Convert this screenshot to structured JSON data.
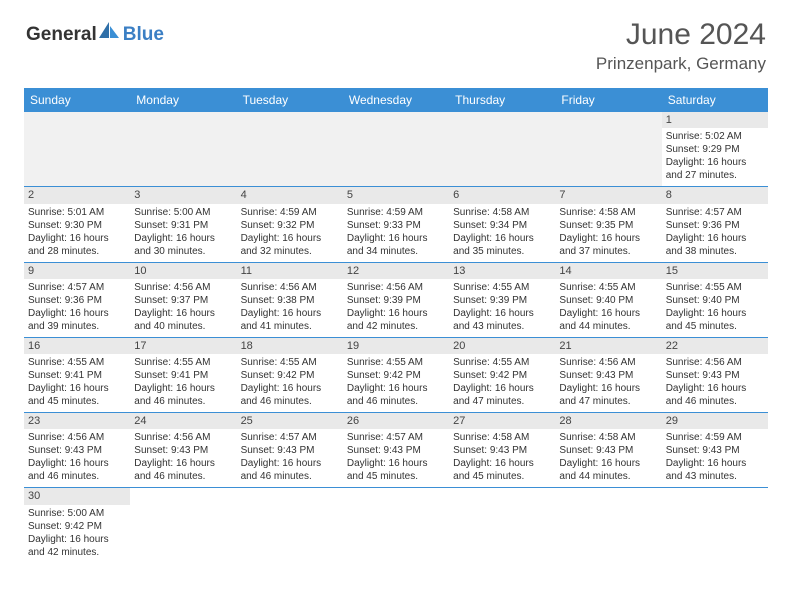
{
  "logo": {
    "text1": "General",
    "text2": "Blue"
  },
  "title": {
    "month_year": "June 2024",
    "location": "Prinzenpark, Germany"
  },
  "colors": {
    "header_bg": "#3b8fd5",
    "header_text": "#ffffff",
    "day_num_bg": "#e9e9e9",
    "row_border": "#3b8fd5",
    "text": "#333333",
    "blank_bg": "#f1f1f1",
    "logo_blue": "#3b7fc4"
  },
  "daynames": [
    "Sunday",
    "Monday",
    "Tuesday",
    "Wednesday",
    "Thursday",
    "Friday",
    "Saturday"
  ],
  "weeks": [
    [
      null,
      null,
      null,
      null,
      null,
      null,
      {
        "n": "1",
        "sr": "5:02 AM",
        "ss": "9:29 PM",
        "dl": "16 hours and 27 minutes."
      }
    ],
    [
      {
        "n": "2",
        "sr": "5:01 AM",
        "ss": "9:30 PM",
        "dl": "16 hours and 28 minutes."
      },
      {
        "n": "3",
        "sr": "5:00 AM",
        "ss": "9:31 PM",
        "dl": "16 hours and 30 minutes."
      },
      {
        "n": "4",
        "sr": "4:59 AM",
        "ss": "9:32 PM",
        "dl": "16 hours and 32 minutes."
      },
      {
        "n": "5",
        "sr": "4:59 AM",
        "ss": "9:33 PM",
        "dl": "16 hours and 34 minutes."
      },
      {
        "n": "6",
        "sr": "4:58 AM",
        "ss": "9:34 PM",
        "dl": "16 hours and 35 minutes."
      },
      {
        "n": "7",
        "sr": "4:58 AM",
        "ss": "9:35 PM",
        "dl": "16 hours and 37 minutes."
      },
      {
        "n": "8",
        "sr": "4:57 AM",
        "ss": "9:36 PM",
        "dl": "16 hours and 38 minutes."
      }
    ],
    [
      {
        "n": "9",
        "sr": "4:57 AM",
        "ss": "9:36 PM",
        "dl": "16 hours and 39 minutes."
      },
      {
        "n": "10",
        "sr": "4:56 AM",
        "ss": "9:37 PM",
        "dl": "16 hours and 40 minutes."
      },
      {
        "n": "11",
        "sr": "4:56 AM",
        "ss": "9:38 PM",
        "dl": "16 hours and 41 minutes."
      },
      {
        "n": "12",
        "sr": "4:56 AM",
        "ss": "9:39 PM",
        "dl": "16 hours and 42 minutes."
      },
      {
        "n": "13",
        "sr": "4:55 AM",
        "ss": "9:39 PM",
        "dl": "16 hours and 43 minutes."
      },
      {
        "n": "14",
        "sr": "4:55 AM",
        "ss": "9:40 PM",
        "dl": "16 hours and 44 minutes."
      },
      {
        "n": "15",
        "sr": "4:55 AM",
        "ss": "9:40 PM",
        "dl": "16 hours and 45 minutes."
      }
    ],
    [
      {
        "n": "16",
        "sr": "4:55 AM",
        "ss": "9:41 PM",
        "dl": "16 hours and 45 minutes."
      },
      {
        "n": "17",
        "sr": "4:55 AM",
        "ss": "9:41 PM",
        "dl": "16 hours and 46 minutes."
      },
      {
        "n": "18",
        "sr": "4:55 AM",
        "ss": "9:42 PM",
        "dl": "16 hours and 46 minutes."
      },
      {
        "n": "19",
        "sr": "4:55 AM",
        "ss": "9:42 PM",
        "dl": "16 hours and 46 minutes."
      },
      {
        "n": "20",
        "sr": "4:55 AM",
        "ss": "9:42 PM",
        "dl": "16 hours and 47 minutes."
      },
      {
        "n": "21",
        "sr": "4:56 AM",
        "ss": "9:43 PM",
        "dl": "16 hours and 47 minutes."
      },
      {
        "n": "22",
        "sr": "4:56 AM",
        "ss": "9:43 PM",
        "dl": "16 hours and 46 minutes."
      }
    ],
    [
      {
        "n": "23",
        "sr": "4:56 AM",
        "ss": "9:43 PM",
        "dl": "16 hours and 46 minutes."
      },
      {
        "n": "24",
        "sr": "4:56 AM",
        "ss": "9:43 PM",
        "dl": "16 hours and 46 minutes."
      },
      {
        "n": "25",
        "sr": "4:57 AM",
        "ss": "9:43 PM",
        "dl": "16 hours and 46 minutes."
      },
      {
        "n": "26",
        "sr": "4:57 AM",
        "ss": "9:43 PM",
        "dl": "16 hours and 45 minutes."
      },
      {
        "n": "27",
        "sr": "4:58 AM",
        "ss": "9:43 PM",
        "dl": "16 hours and 45 minutes."
      },
      {
        "n": "28",
        "sr": "4:58 AM",
        "ss": "9:43 PM",
        "dl": "16 hours and 44 minutes."
      },
      {
        "n": "29",
        "sr": "4:59 AM",
        "ss": "9:43 PM",
        "dl": "16 hours and 43 minutes."
      }
    ],
    [
      {
        "n": "30",
        "sr": "5:00 AM",
        "ss": "9:42 PM",
        "dl": "16 hours and 42 minutes."
      },
      null,
      null,
      null,
      null,
      null,
      null
    ]
  ],
  "labels": {
    "sunrise": "Sunrise:",
    "sunset": "Sunset:",
    "daylight": "Daylight:"
  }
}
